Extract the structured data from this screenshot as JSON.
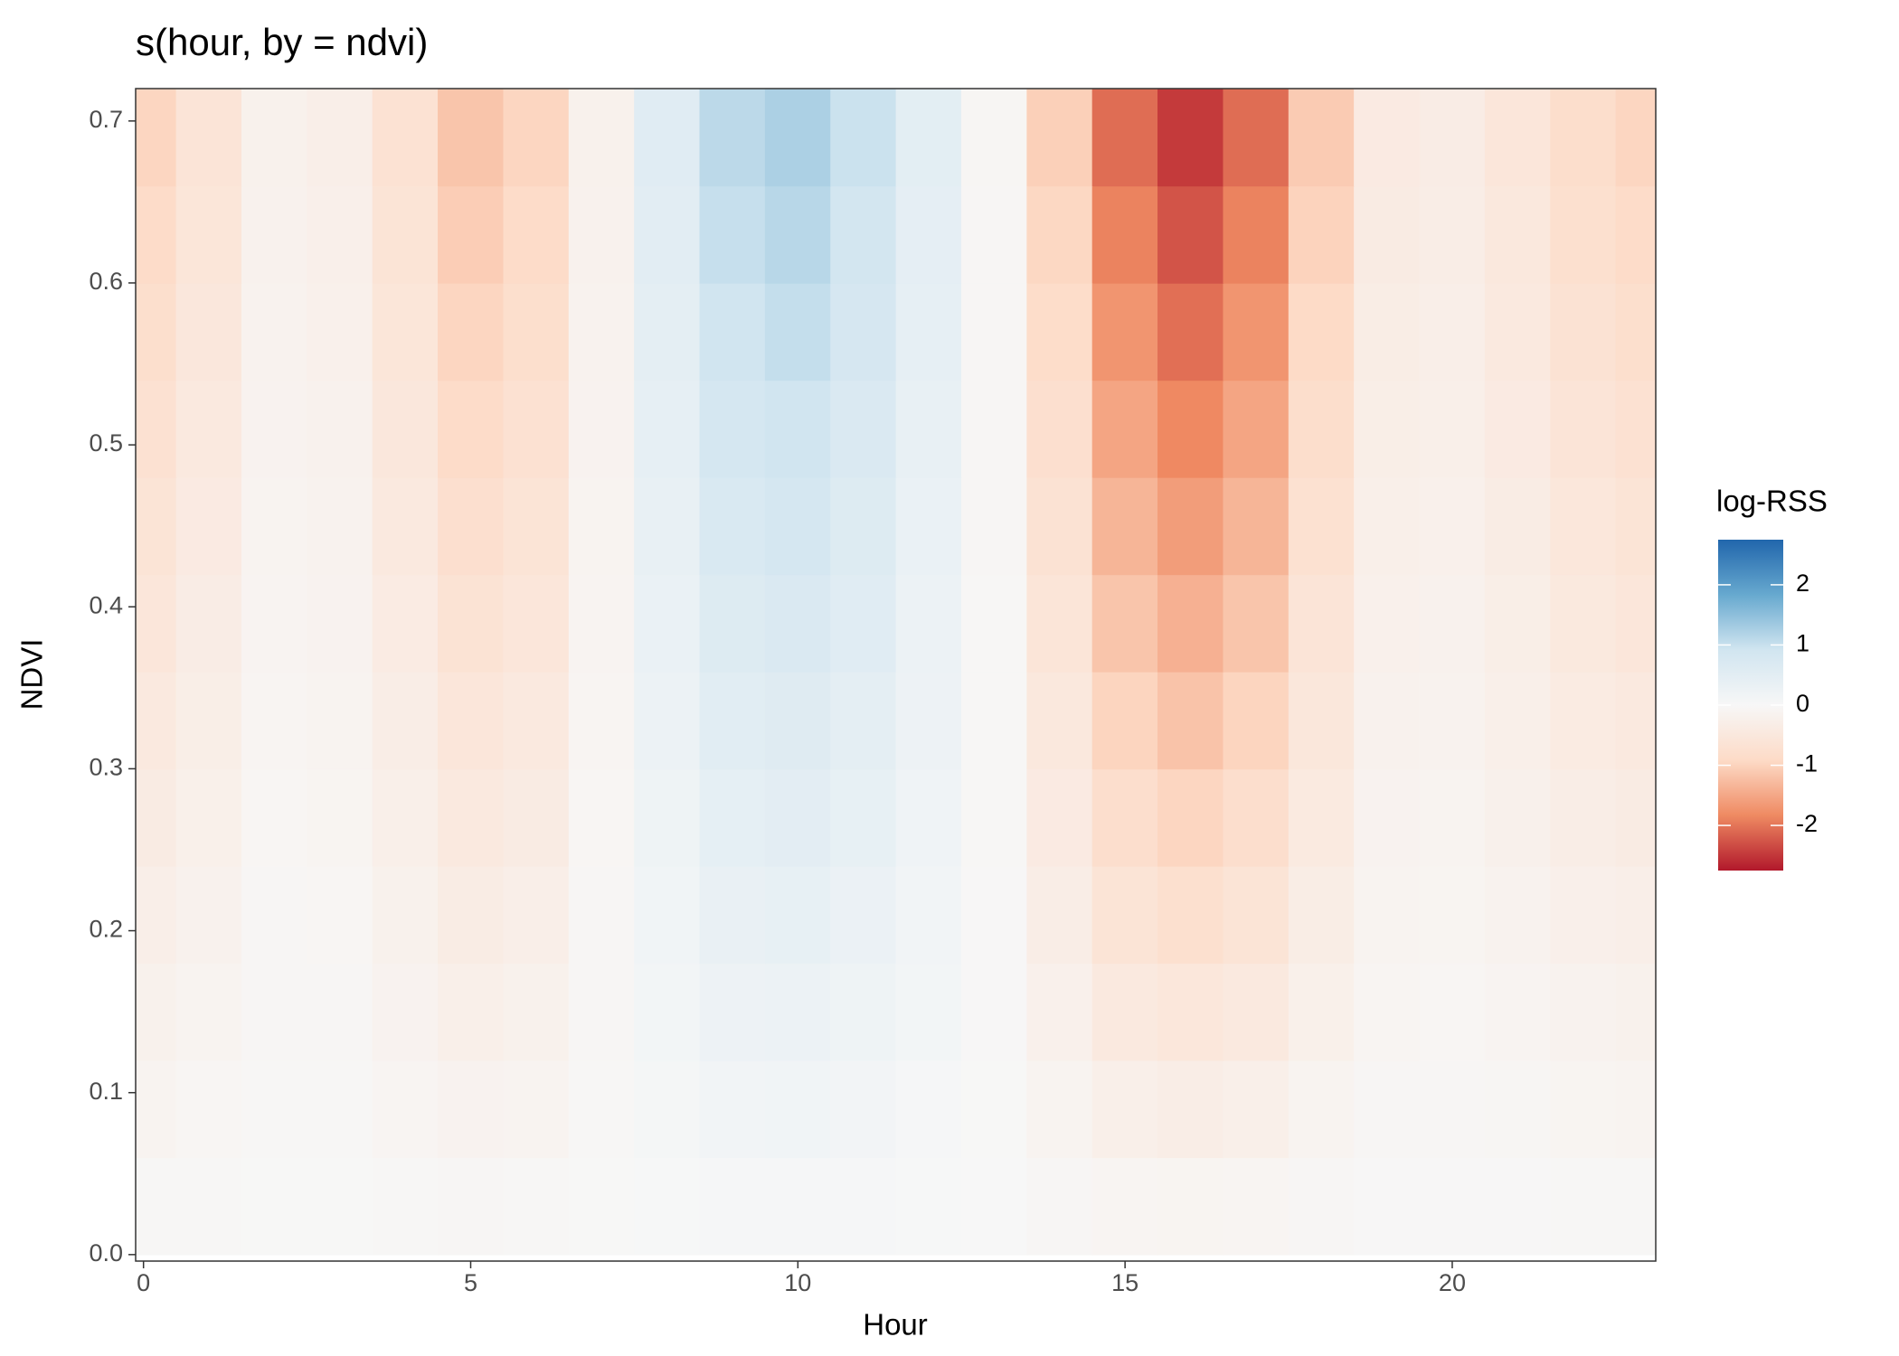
{
  "chart_data": {
    "type": "heatmap",
    "title": "s(hour, by = ndvi)",
    "x_label": "Hour",
    "y_label": "NDVI",
    "x": [
      0,
      1,
      2,
      3,
      4,
      5,
      6,
      7,
      8,
      9,
      10,
      11,
      12,
      13,
      14,
      15,
      16,
      17,
      18,
      19,
      20,
      21,
      22,
      23
    ],
    "y": [
      0.03,
      0.09,
      0.15,
      0.21,
      0.27,
      0.33,
      0.39,
      0.45,
      0.51,
      0.57,
      0.63,
      0.69
    ],
    "z": [
      [
        -0.04,
        -0.03,
        -0.01,
        -0.01,
        -0.03,
        -0.05,
        -0.04,
        -0.01,
        0.02,
        0.05,
        0.05,
        0.04,
        0.02,
        0,
        -0.05,
        -0.09,
        -0.11,
        -0.09,
        -0.05,
        -0.02,
        -0.02,
        -0.02,
        -0.04,
        -0.04
      ],
      [
        -0.13,
        -0.08,
        -0.03,
        -0.04,
        -0.09,
        -0.15,
        -0.13,
        -0.03,
        0.07,
        0.14,
        0.16,
        0.13,
        0.06,
        -0.01,
        -0.14,
        -0.27,
        -0.32,
        -0.27,
        -0.14,
        -0.05,
        -0.05,
        -0.07,
        -0.11,
        -0.13
      ],
      [
        -0.21,
        -0.14,
        -0.05,
        -0.06,
        -0.15,
        -0.26,
        -0.21,
        -0.05,
        0.12,
        0.24,
        0.27,
        0.21,
        0.11,
        -0.02,
        -0.23,
        -0.45,
        -0.54,
        -0.45,
        -0.24,
        -0.09,
        -0.08,
        -0.12,
        -0.18,
        -0.21
      ],
      [
        -0.29,
        -0.19,
        -0.06,
        -0.08,
        -0.21,
        -0.36,
        -0.29,
        -0.06,
        0.17,
        0.34,
        0.38,
        0.29,
        0.15,
        -0.02,
        -0.32,
        -0.63,
        -0.76,
        -0.63,
        -0.34,
        -0.13,
        -0.11,
        -0.17,
        -0.25,
        -0.29
      ],
      [
        -0.38,
        -0.24,
        -0.08,
        -0.11,
        -0.27,
        -0.46,
        -0.38,
        -0.08,
        0.22,
        0.43,
        0.49,
        0.38,
        0.19,
        -0.03,
        -0.41,
        -0.81,
        -0.97,
        -0.81,
        -0.43,
        -0.16,
        -0.14,
        -0.22,
        -0.32,
        -0.38
      ],
      [
        -0.46,
        -0.3,
        -0.1,
        -0.13,
        -0.33,
        -0.56,
        -0.46,
        -0.1,
        0.26,
        0.53,
        0.59,
        0.46,
        0.23,
        -0.03,
        -0.5,
        -0.99,
        -1.19,
        -0.99,
        -0.53,
        -0.2,
        -0.17,
        -0.26,
        -0.4,
        -0.46
      ],
      [
        -0.55,
        -0.35,
        -0.12,
        -0.16,
        -0.39,
        -0.66,
        -0.55,
        -0.12,
        0.31,
        0.62,
        0.7,
        0.55,
        0.27,
        -0.04,
        -0.59,
        -1.17,
        -1.4,
        -1.17,
        -0.62,
        -0.23,
        -0.2,
        -0.31,
        -0.47,
        -0.55
      ],
      [
        -0.63,
        -0.41,
        -0.14,
        -0.18,
        -0.45,
        -0.77,
        -0.63,
        -0.14,
        0.36,
        0.72,
        0.81,
        0.63,
        0.32,
        -0.05,
        -0.68,
        -1.35,
        -1.62,
        -1.35,
        -0.72,
        -0.27,
        -0.23,
        -0.36,
        -0.54,
        -0.63
      ],
      [
        -0.71,
        -0.46,
        -0.15,
        -0.2,
        -0.51,
        -0.87,
        -0.71,
        -0.15,
        0.41,
        0.82,
        0.92,
        0.71,
        0.36,
        -0.05,
        -0.77,
        -1.53,
        -1.84,
        -1.53,
        -0.82,
        -0.31,
        -0.26,
        -0.41,
        -0.61,
        -0.71
      ],
      [
        -0.8,
        -0.51,
        -0.17,
        -0.23,
        -0.57,
        -0.97,
        -0.8,
        -0.17,
        0.46,
        0.91,
        1.03,
        0.8,
        0.4,
        -0.06,
        -0.86,
        -1.71,
        -2.05,
        -1.71,
        -0.91,
        -0.34,
        -0.29,
        -0.46,
        -0.68,
        -0.8
      ],
      [
        -0.88,
        -0.57,
        -0.19,
        -0.25,
        -0.63,
        -1.07,
        -0.88,
        -0.19,
        0.5,
        1.01,
        1.13,
        0.88,
        0.44,
        -0.06,
        -0.95,
        -1.89,
        -2.27,
        -1.89,
        -1.01,
        -0.38,
        -0.32,
        -0.5,
        -0.76,
        -0.88
      ],
      [
        -0.97,
        -0.62,
        -0.21,
        -0.28,
        -0.69,
        -1.17,
        -0.97,
        -0.21,
        0.55,
        1.1,
        1.24,
        0.97,
        0.48,
        -0.07,
        -1.04,
        -2.07,
        -2.48,
        -2.07,
        -1.1,
        -0.41,
        -0.35,
        -0.55,
        -0.83,
        -0.97
      ]
    ],
    "xlim": [
      -0.12,
      23.11
    ],
    "xticks": [
      0,
      5,
      10,
      15,
      20
    ],
    "ylim": [
      -0.004,
      0.72
    ],
    "yticks": [
      {
        "value": 0,
        "label": "0.0"
      },
      0.1,
      0.2,
      0.3,
      0.4,
      0.5,
      0.6,
      0.7
    ],
    "colorbar": {
      "title": "log-RSS",
      "lim": [
        -2.75,
        2.75
      ],
      "ticks": [
        2,
        1,
        0,
        -1,
        -2
      ],
      "colors": [
        "#b2182b",
        "#ef8a62",
        "#fddbc7",
        "#f7f7f7",
        "#d1e5f0",
        "#67a9cf",
        "#2166ac"
      ]
    }
  }
}
